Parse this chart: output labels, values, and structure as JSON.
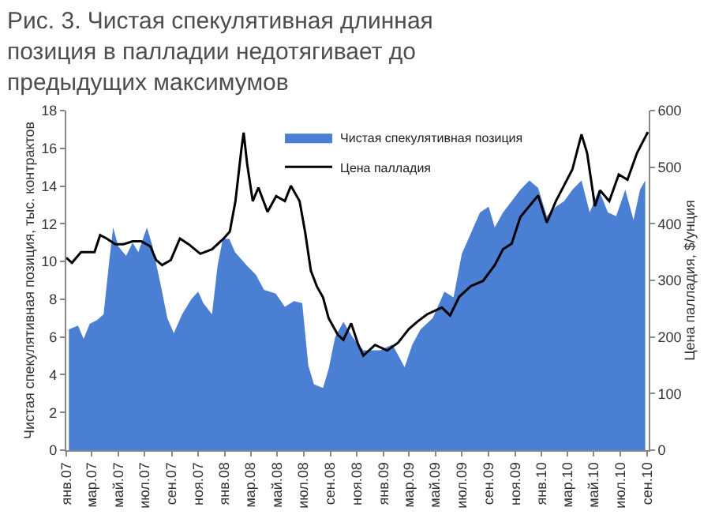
{
  "chart_data": {
    "type": "area",
    "title": "Рис. 3. Чистая спекулятивная длинная позиция в палладии недотягивает до предыдущих максимумов",
    "ylabel": "Чистая спекулятивная позиция, тыс. контрактов",
    "y2label": "Цена палладия, $/унция",
    "xlim": [
      "2007-01-01",
      "2010-09-05"
    ],
    "xticks": [
      {
        "value": "2007-01-01",
        "label": "янв.07"
      },
      {
        "value": "2007-03-01",
        "label": "мар.07"
      },
      {
        "value": "2007-05-01",
        "label": "май.07"
      },
      {
        "value": "2007-07-01",
        "label": "июл.07"
      },
      {
        "value": "2007-09-01",
        "label": "сен.07"
      },
      {
        "value": "2007-11-01",
        "label": "ноя.07"
      },
      {
        "value": "2008-01-01",
        "label": "янв.08"
      },
      {
        "value": "2008-03-01",
        "label": "мар.08"
      },
      {
        "value": "2008-05-01",
        "label": "май.08"
      },
      {
        "value": "2008-07-01",
        "label": "июл.08"
      },
      {
        "value": "2008-09-01",
        "label": "сен.08"
      },
      {
        "value": "2008-11-01",
        "label": "ноя.08"
      },
      {
        "value": "2009-01-01",
        "label": "янв.09"
      },
      {
        "value": "2009-03-01",
        "label": "мар.09"
      },
      {
        "value": "2009-05-01",
        "label": "май.09"
      },
      {
        "value": "2009-07-01",
        "label": "июл.09"
      },
      {
        "value": "2009-09-01",
        "label": "сен.09"
      },
      {
        "value": "2009-11-01",
        "label": "ноя.09"
      },
      {
        "value": "2010-01-01",
        "label": "янв.10"
      },
      {
        "value": "2010-03-01",
        "label": "мар.10"
      },
      {
        "value": "2010-05-01",
        "label": "май.10"
      },
      {
        "value": "2010-07-01",
        "label": "июл.10"
      },
      {
        "value": "2010-09-01",
        "label": "сен.10"
      }
    ],
    "ylim": [
      0,
      18
    ],
    "yticks": [
      0,
      2,
      4,
      6,
      8,
      10,
      12,
      14,
      16,
      18
    ],
    "y2lim": [
      0,
      600
    ],
    "y2ticks": [
      0,
      100,
      200,
      300,
      400,
      500,
      600
    ],
    "legend": "top",
    "series": [
      {
        "name": "Чистая спекулятивная позиция",
        "color": "#4a7fd4",
        "x": [
          "2007-01-07",
          "2007-01-28",
          "2007-02-10",
          "2007-02-24",
          "2007-03-13",
          "2007-03-28",
          "2007-04-10",
          "2007-04-19",
          "2007-05-01",
          "2007-05-19",
          "2007-06-03",
          "2007-06-16",
          "2007-07-06",
          "2007-07-19",
          "2007-08-09",
          "2007-08-22",
          "2007-09-06",
          "2007-09-25",
          "2007-10-16",
          "2007-11-01",
          "2007-11-13",
          "2007-12-03",
          "2007-12-16",
          "2007-12-28",
          "2008-01-12",
          "2008-01-25",
          "2008-02-21",
          "2008-03-13",
          "2008-04-01",
          "2008-04-28",
          "2008-05-19",
          "2008-06-09",
          "2008-06-28",
          "2008-07-12",
          "2008-07-25",
          "2008-08-15",
          "2008-08-28",
          "2008-09-12",
          "2008-10-01",
          "2008-10-22",
          "2008-11-16",
          "2008-12-25",
          "2009-01-22",
          "2009-02-19",
          "2009-03-09",
          "2009-03-28",
          "2009-04-25",
          "2009-05-22",
          "2009-06-12",
          "2009-07-01",
          "2009-07-22",
          "2009-08-12",
          "2009-09-01",
          "2009-09-15",
          "2009-10-04",
          "2009-10-24",
          "2009-11-13",
          "2009-12-04",
          "2009-12-24",
          "2010-01-13",
          "2010-02-03",
          "2010-02-22",
          "2010-03-13",
          "2010-04-03",
          "2010-04-22",
          "2010-05-13",
          "2010-06-03",
          "2010-06-22",
          "2010-07-13",
          "2010-08-01",
          "2010-08-16",
          "2010-08-28"
        ],
        "values": [
          6.4,
          6.6,
          5.9,
          6.7,
          6.9,
          7.2,
          10.0,
          11.8,
          10.8,
          10.3,
          11.0,
          10.5,
          11.8,
          10.8,
          8.5,
          7.0,
          6.2,
          7.2,
          8.0,
          8.4,
          7.8,
          7.2,
          9.8,
          11.2,
          11.2,
          10.5,
          9.8,
          9.3,
          8.5,
          8.3,
          7.6,
          7.9,
          7.8,
          4.5,
          3.5,
          3.3,
          4.3,
          6.0,
          6.8,
          6.0,
          5.3,
          5.3,
          5.6,
          4.4,
          5.6,
          6.4,
          7.0,
          8.4,
          8.1,
          10.4,
          11.5,
          12.6,
          12.9,
          11.8,
          12.6,
          13.2,
          13.8,
          14.3,
          13.9,
          12.4,
          12.9,
          13.2,
          13.8,
          14.3,
          12.6,
          13.8,
          12.6,
          12.4,
          13.8,
          12.2,
          13.8,
          14.3
        ]
      },
      {
        "name": "Цена палладия",
        "type": "line",
        "axis": "y2",
        "color": "#000000",
        "x": [
          "2007-01-01",
          "2007-01-14",
          "2007-02-04",
          "2007-02-17",
          "2007-03-07",
          "2007-03-20",
          "2007-04-04",
          "2007-04-24",
          "2007-05-13",
          "2007-06-03",
          "2007-06-23",
          "2007-07-14",
          "2007-07-27",
          "2007-08-10",
          "2007-08-30",
          "2007-09-20",
          "2007-10-10",
          "2007-11-06",
          "2007-12-03",
          "2007-12-30",
          "2008-01-13",
          "2008-01-26",
          "2008-02-09",
          "2008-02-14",
          "2008-02-22",
          "2008-03-06",
          "2008-03-19",
          "2008-04-09",
          "2008-04-29",
          "2008-05-19",
          "2008-06-02",
          "2008-06-22",
          "2008-07-05",
          "2008-07-18",
          "2008-08-01",
          "2008-08-15",
          "2008-08-28",
          "2008-09-18",
          "2008-10-01",
          "2008-10-19",
          "2008-11-04",
          "2008-11-16",
          "2008-12-13",
          "2009-01-10",
          "2009-02-04",
          "2009-03-01",
          "2009-03-22",
          "2009-04-12",
          "2009-05-16",
          "2009-06-04",
          "2009-06-25",
          "2009-07-22",
          "2009-08-19",
          "2009-09-15",
          "2009-10-04",
          "2009-10-24",
          "2009-11-13",
          "2009-12-24",
          "2010-01-13",
          "2010-02-03",
          "2010-02-22",
          "2010-03-13",
          "2010-04-03",
          "2010-04-16",
          "2010-05-04",
          "2010-05-16",
          "2010-06-06",
          "2010-06-28",
          "2010-07-18",
          "2010-08-09",
          "2010-08-28",
          "2010-09-03"
        ],
        "values": [
          340,
          331,
          350,
          350,
          350,
          380,
          374,
          364,
          364,
          369,
          369,
          360,
          336,
          327,
          336,
          374,
          364,
          347,
          355,
          374,
          386,
          440,
          533,
          561,
          506,
          440,
          464,
          421,
          449,
          440,
          467,
          440,
          384,
          317,
          289,
          270,
          233,
          204,
          195,
          224,
          187,
          167,
          186,
          176,
          190,
          214,
          228,
          240,
          252,
          238,
          271,
          290,
          299,
          327,
          355,
          365,
          412,
          450,
          402,
          440,
          468,
          496,
          558,
          525,
          431,
          459,
          440,
          487,
          478,
          525,
          553,
          562
        ]
      }
    ]
  }
}
